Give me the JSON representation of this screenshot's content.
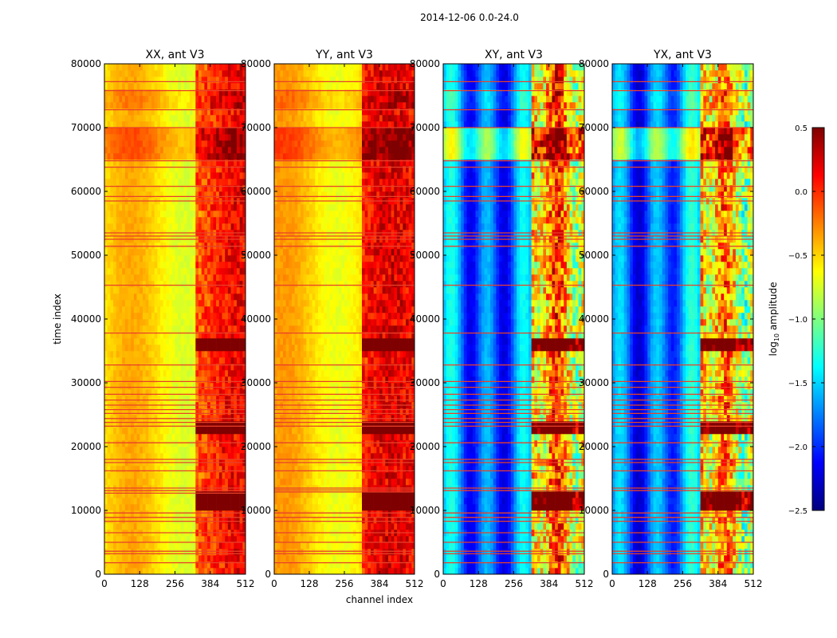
{
  "figure_title": "2014-12-06 0.0-24.0",
  "chart_data": [
    {
      "type": "heatmap",
      "title": "XX, ant V3",
      "xlabel": "",
      "ylabel": "time index",
      "xlim": [
        0,
        512
      ],
      "ylim": [
        0,
        80000
      ],
      "xticks": [
        0,
        128,
        256,
        384,
        512
      ],
      "yticks": [
        0,
        10000,
        20000,
        30000,
        40000,
        50000,
        60000,
        70000,
        80000
      ],
      "base_level": -0.55,
      "high_channel_start": 330,
      "flag_rows": [
        1800,
        3200,
        3600,
        5000,
        6500,
        8300,
        8900,
        9600,
        12700,
        13100,
        13500,
        16200,
        17500,
        18000,
        20600,
        23200,
        23800,
        24400,
        25200,
        25800,
        26500,
        27300,
        28200,
        29300,
        30200,
        32800,
        37800,
        45300,
        51400,
        52500,
        53000,
        53500,
        58500,
        59200,
        60800,
        63800,
        64800,
        70000,
        72800,
        75800,
        77200
      ]
    },
    {
      "type": "heatmap",
      "title": "YY, ant V3",
      "xlabel": "channel index",
      "ylabel": "",
      "xlim": [
        0,
        512
      ],
      "ylim": [
        0,
        80000
      ],
      "xticks": [
        0,
        128,
        256,
        384,
        512
      ],
      "yticks": [
        0,
        10000,
        20000,
        30000,
        40000,
        50000,
        60000,
        70000,
        80000
      ],
      "base_level": -0.5,
      "high_channel_start": 325,
      "flag_rows": [
        1800,
        3200,
        3600,
        5000,
        6500,
        8300,
        8900,
        9600,
        12900,
        13200,
        13500,
        16200,
        17500,
        18000,
        20600,
        23200,
        23800,
        24400,
        25200,
        25800,
        26500,
        27300,
        28200,
        29300,
        30200,
        32800,
        37800,
        45300,
        51400,
        52500,
        53000,
        53500,
        58500,
        59200,
        60800,
        63800,
        64800,
        70000,
        72800,
        75800,
        77200
      ]
    },
    {
      "type": "heatmap",
      "title": "XY, ant V3",
      "xlabel": "",
      "ylabel": "",
      "xlim": [
        0,
        512
      ],
      "ylim": [
        0,
        80000
      ],
      "xticks": [
        0,
        128,
        256,
        384,
        512
      ],
      "yticks": [
        0,
        10000,
        20000,
        30000,
        40000,
        50000,
        60000,
        70000,
        80000
      ],
      "base_level": -1.75,
      "high_channel_start": 325,
      "flag_rows": [
        1800,
        3200,
        3600,
        5000,
        6500,
        8300,
        8900,
        9600,
        13100,
        13500,
        16200,
        17500,
        18000,
        20600,
        23200,
        23800,
        24400,
        25200,
        25800,
        26500,
        27300,
        28200,
        29300,
        30200,
        32800,
        37800,
        45300,
        51400,
        52500,
        53000,
        53500,
        58500,
        59200,
        60800,
        63800,
        64800,
        70000,
        72800,
        75800,
        77200
      ]
    },
    {
      "type": "heatmap",
      "title": "YX, ant V3",
      "xlabel": "",
      "ylabel": "",
      "xlim": [
        0,
        512
      ],
      "ylim": [
        0,
        80000
      ],
      "xticks": [
        0,
        128,
        256,
        384,
        512
      ],
      "yticks": [
        0,
        10000,
        20000,
        30000,
        40000,
        50000,
        60000,
        70000,
        80000
      ],
      "base_level": -1.75,
      "high_channel_start": 325,
      "flag_rows": [
        1800,
        3200,
        3600,
        5000,
        6500,
        8300,
        8900,
        9600,
        13100,
        13500,
        16200,
        17500,
        18000,
        20600,
        23200,
        23800,
        24400,
        25200,
        25800,
        26500,
        27300,
        28200,
        29300,
        30200,
        32800,
        37800,
        45300,
        51400,
        52500,
        53000,
        53500,
        58500,
        59200,
        60800,
        63800,
        64800,
        70000,
        72800,
        75800,
        77200
      ]
    }
  ],
  "colorbar": {
    "label_base": "log",
    "label_sub": "10",
    "label_rest": " amplitude",
    "range": [
      -2.5,
      0.5
    ],
    "ticks": [
      0.5,
      0.0,
      -0.5,
      -1.0,
      -1.5,
      -2.0,
      -2.5
    ],
    "tick_labels": [
      "0.5",
      "0.0",
      "−0.5",
      "−1.0",
      "−1.5",
      "−2.0",
      "−2.5"
    ],
    "colormap": "jet"
  },
  "colors": {
    "jet_stops": [
      "#00007f",
      "#0000ff",
      "#007fff",
      "#00ffff",
      "#7fff7f",
      "#ffff00",
      "#ff7f00",
      "#ff0000",
      "#7f0000"
    ],
    "flag_line": "#e8412a"
  }
}
